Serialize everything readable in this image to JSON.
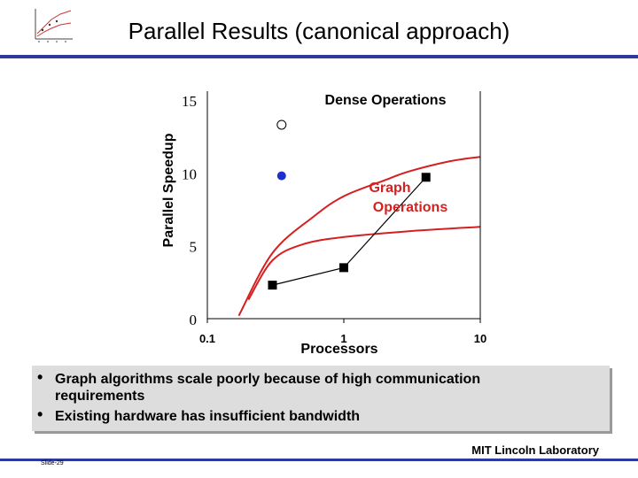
{
  "slide": {
    "title": "Parallel Results (canonical approach)",
    "footer_lab": "MIT Lincoln Laboratory",
    "slide_number": "Slide-29",
    "accent_color": "#2d38a0"
  },
  "chart_data": {
    "type": "scatter",
    "ylabel": "Parallel Speedup",
    "xlabel": "Processors",
    "x_scale": "log",
    "xlim": [
      0.1,
      10
    ],
    "ylim": [
      0,
      15
    ],
    "x_ticks": [
      "0.1",
      "1",
      "10"
    ],
    "y_ticks": [
      "0",
      "5",
      "10",
      "15"
    ],
    "annotations": {
      "dense": "Dense Operations",
      "graph_line1": "Graph",
      "graph_line2": "Operations"
    },
    "colors": {
      "curve": "#d42020",
      "dense_filled": "#1d2fd0",
      "graph": "#000000"
    },
    "series": [
      {
        "values": [
          {
            "x": 0.35,
            "y": 13.3
          }
        ],
        "marker": "open-circle"
      },
      {
        "values": [
          {
            "x": 0.35,
            "y": 9.8
          }
        ],
        "marker": "filled-circle"
      },
      {
        "values": [
          {
            "x": 0.3,
            "y": 2.3
          },
          {
            "x": 1.0,
            "y": 3.5
          },
          {
            "x": 4.0,
            "y": 9.7
          }
        ],
        "marker": "square",
        "connected": true
      },
      {
        "values": [
          {
            "x": 0.17,
            "y": 0.2
          },
          {
            "x": 0.3,
            "y": 4.5
          },
          {
            "x": 0.6,
            "y": 7.0
          },
          {
            "x": 1.0,
            "y": 8.4
          },
          {
            "x": 2.0,
            "y": 9.5
          },
          {
            "x": 3.0,
            "y": 10.1
          },
          {
            "x": 6.0,
            "y": 10.8
          },
          {
            "x": 10.0,
            "y": 11.1
          }
        ],
        "line": "smooth"
      },
      {
        "values": [
          {
            "x": 0.2,
            "y": 1.3
          },
          {
            "x": 0.3,
            "y": 4.0
          },
          {
            "x": 0.5,
            "y": 5.1
          },
          {
            "x": 1.0,
            "y": 5.6
          },
          {
            "x": 3.0,
            "y": 6.0
          },
          {
            "x": 10.0,
            "y": 6.3
          }
        ],
        "line": "smooth"
      }
    ]
  },
  "bullets": [
    "Graph algorithms scale poorly because of high communication requirements",
    "Existing hardware has insufficient bandwidth"
  ]
}
